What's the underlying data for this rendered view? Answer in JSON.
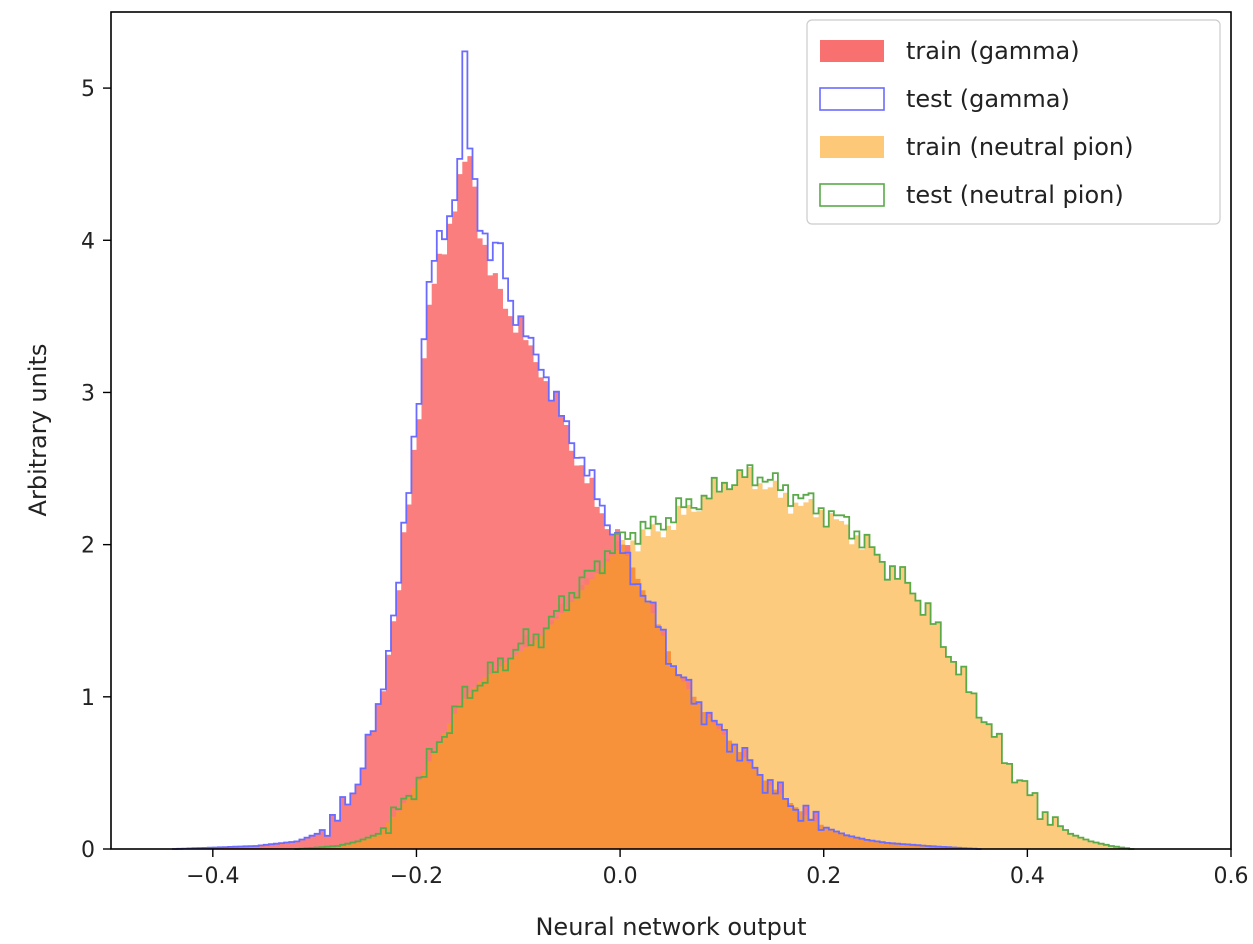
{
  "chart_data": {
    "type": "histogram",
    "xlabel": "Neural network output",
    "ylabel": "Arbitrary units",
    "xlim": [
      -0.5,
      0.6
    ],
    "ylim": [
      0,
      5.5
    ],
    "x_ticks": [
      -0.4,
      -0.2,
      0.0,
      0.2,
      0.4,
      0.6
    ],
    "x_tick_labels": [
      "−0.4",
      "−0.2",
      "0.0",
      "0.2",
      "0.4",
      "0.6"
    ],
    "y_ticks": [
      0,
      1,
      2,
      3,
      4,
      5
    ],
    "y_tick_labels": [
      "0",
      "1",
      "2",
      "3",
      "4",
      "5"
    ],
    "grid": false,
    "legend_position": "top-right",
    "legend": [
      "train (gamma)",
      "test (gamma)",
      "train (neutral pion)",
      "test (neutral pion)"
    ],
    "series": [
      {
        "name": "train (gamma)",
        "style": "filled",
        "color": "#f97070",
        "x": [
          -0.44,
          -0.4,
          -0.36,
          -0.32,
          -0.3,
          -0.28,
          -0.26,
          -0.24,
          -0.22,
          -0.2,
          -0.19,
          -0.18,
          -0.17,
          -0.16,
          -0.15,
          -0.14,
          -0.13,
          -0.12,
          -0.11,
          -0.1,
          -0.09,
          -0.08,
          -0.07,
          -0.06,
          -0.05,
          -0.04,
          -0.03,
          -0.02,
          -0.01,
          0.0,
          0.01,
          0.02,
          0.03,
          0.04,
          0.05,
          0.06,
          0.08,
          0.1,
          0.12,
          0.14,
          0.16,
          0.18,
          0.2,
          0.22,
          0.24,
          0.26,
          0.3,
          0.35
        ],
        "y": [
          0.0,
          0.01,
          0.02,
          0.05,
          0.1,
          0.2,
          0.45,
          0.9,
          1.7,
          2.9,
          3.55,
          3.85,
          4.1,
          4.4,
          4.55,
          4.1,
          3.8,
          3.65,
          3.5,
          3.45,
          3.25,
          3.15,
          3.0,
          2.85,
          2.65,
          2.5,
          2.35,
          2.2,
          2.1,
          2.0,
          1.85,
          1.7,
          1.55,
          1.4,
          1.2,
          1.1,
          0.9,
          0.75,
          0.6,
          0.45,
          0.33,
          0.22,
          0.14,
          0.09,
          0.06,
          0.04,
          0.02,
          0.0
        ]
      },
      {
        "name": "test (gamma)",
        "style": "step",
        "color": "#6b6bff",
        "x": [
          -0.44,
          -0.4,
          -0.36,
          -0.32,
          -0.3,
          -0.28,
          -0.26,
          -0.24,
          -0.22,
          -0.2,
          -0.19,
          -0.18,
          -0.17,
          -0.16,
          -0.155,
          -0.15,
          -0.14,
          -0.13,
          -0.12,
          -0.11,
          -0.1,
          -0.09,
          -0.08,
          -0.07,
          -0.06,
          -0.05,
          -0.04,
          -0.03,
          -0.02,
          -0.01,
          0.0,
          0.01,
          0.02,
          0.03,
          0.04,
          0.05,
          0.06,
          0.08,
          0.1,
          0.12,
          0.14,
          0.16,
          0.18,
          0.2,
          0.22,
          0.24,
          0.26,
          0.3,
          0.35
        ],
        "y": [
          0.0,
          0.01,
          0.02,
          0.05,
          0.1,
          0.2,
          0.45,
          0.9,
          1.75,
          3.0,
          3.7,
          4.0,
          4.15,
          4.5,
          5.2,
          4.6,
          4.15,
          3.9,
          3.95,
          3.6,
          3.45,
          3.3,
          3.2,
          3.0,
          2.85,
          2.7,
          2.55,
          2.4,
          2.25,
          2.1,
          1.95,
          1.8,
          1.7,
          1.55,
          1.4,
          1.2,
          1.1,
          0.9,
          0.75,
          0.6,
          0.45,
          0.33,
          0.22,
          0.14,
          0.09,
          0.06,
          0.04,
          0.02,
          0.0
        ]
      },
      {
        "name": "train (neutral pion)",
        "style": "filled",
        "color": "#fdc877",
        "x": [
          -0.32,
          -0.28,
          -0.26,
          -0.24,
          -0.22,
          -0.2,
          -0.18,
          -0.16,
          -0.14,
          -0.12,
          -0.1,
          -0.08,
          -0.06,
          -0.04,
          -0.02,
          0.0,
          0.02,
          0.04,
          0.06,
          0.08,
          0.1,
          0.12,
          0.14,
          0.16,
          0.18,
          0.2,
          0.22,
          0.24,
          0.26,
          0.28,
          0.3,
          0.32,
          0.34,
          0.36,
          0.38,
          0.4,
          0.42,
          0.44,
          0.46,
          0.48,
          0.5
        ],
        "y": [
          0.0,
          0.02,
          0.05,
          0.1,
          0.25,
          0.45,
          0.7,
          0.95,
          1.1,
          1.2,
          1.3,
          1.4,
          1.55,
          1.7,
          1.85,
          2.0,
          2.05,
          2.1,
          2.2,
          2.3,
          2.4,
          2.45,
          2.4,
          2.3,
          2.25,
          2.2,
          2.1,
          2.0,
          1.85,
          1.75,
          1.55,
          1.3,
          1.05,
          0.8,
          0.55,
          0.35,
          0.2,
          0.1,
          0.05,
          0.02,
          0.0
        ]
      },
      {
        "name": "test (neutral pion)",
        "style": "step",
        "color": "#5aaa4a",
        "x": [
          -0.32,
          -0.28,
          -0.26,
          -0.24,
          -0.22,
          -0.2,
          -0.18,
          -0.16,
          -0.14,
          -0.12,
          -0.1,
          -0.08,
          -0.06,
          -0.04,
          -0.02,
          0.0,
          0.02,
          0.04,
          0.06,
          0.08,
          0.1,
          0.12,
          0.14,
          0.16,
          0.18,
          0.2,
          0.22,
          0.24,
          0.26,
          0.28,
          0.3,
          0.32,
          0.34,
          0.36,
          0.38,
          0.4,
          0.42,
          0.44,
          0.46,
          0.48,
          0.5
        ],
        "y": [
          0.0,
          0.02,
          0.05,
          0.1,
          0.25,
          0.45,
          0.7,
          0.95,
          1.1,
          1.2,
          1.35,
          1.4,
          1.6,
          1.75,
          1.9,
          2.05,
          2.1,
          2.15,
          2.25,
          2.3,
          2.4,
          2.45,
          2.45,
          2.35,
          2.3,
          2.2,
          2.15,
          2.0,
          1.85,
          1.75,
          1.55,
          1.3,
          1.05,
          0.8,
          0.55,
          0.35,
          0.2,
          0.1,
          0.05,
          0.02,
          0.0
        ]
      }
    ]
  }
}
